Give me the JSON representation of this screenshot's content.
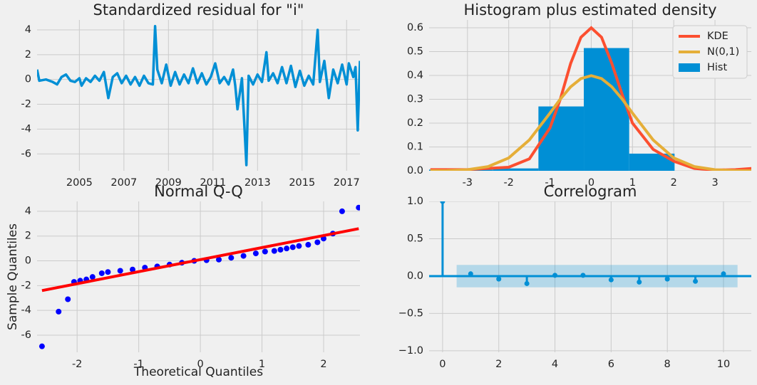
{
  "chart_data": [
    {
      "type": "line",
      "title": "Standardized residual for \"i\"",
      "x": [
        2003.1,
        2003.2,
        2003.5,
        2003.8,
        2004.0,
        2004.2,
        2004.4,
        2004.6,
        2004.8,
        2005.0,
        2005.1,
        2005.3,
        2005.5,
        2005.7,
        2005.9,
        2006.1,
        2006.3,
        2006.5,
        2006.7,
        2006.9,
        2007.1,
        2007.3,
        2007.5,
        2007.7,
        2007.9,
        2008.1,
        2008.3,
        2008.4,
        2008.5,
        2008.7,
        2008.9,
        2009.1,
        2009.3,
        2009.5,
        2009.7,
        2009.9,
        2010.1,
        2010.3,
        2010.5,
        2010.7,
        2010.9,
        2011.1,
        2011.3,
        2011.5,
        2011.7,
        2011.9,
        2012.0,
        2012.1,
        2012.3,
        2012.5,
        2012.6,
        2012.8,
        2013.0,
        2013.2,
        2013.4,
        2013.5,
        2013.7,
        2013.9,
        2014.1,
        2014.3,
        2014.5,
        2014.7,
        2014.9,
        2015.1,
        2015.3,
        2015.5,
        2015.7,
        2015.8,
        2016.0,
        2016.2,
        2016.4,
        2016.6,
        2016.8,
        2017.0,
        2017.1,
        2017.3,
        2017.4,
        2017.5,
        2017.6
      ],
      "series": [
        {
          "color": "#008fd5",
          "values": [
            0.8,
            -0.1,
            0,
            -0.2,
            -0.4,
            0.2,
            0.4,
            -0.1,
            -0.2,
            0.1,
            -0.5,
            0.1,
            -0.2,
            0.3,
            -0.1,
            0.6,
            -1.5,
            0.2,
            0.5,
            -0.3,
            0.3,
            -0.4,
            0.2,
            -0.5,
            0.3,
            -0.3,
            -0.4,
            4.3,
            0.8,
            -0.3,
            1.2,
            -0.5,
            0.6,
            -0.4,
            0.4,
            -0.3,
            0.9,
            -0.3,
            0.5,
            -0.4,
            0.2,
            1.3,
            -0.3,
            0.2,
            -0.4,
            0.8,
            -0.5,
            -2.4,
            0.1,
            -6.9,
            0.3,
            -0.4,
            0.4,
            -0.2,
            2.2,
            -0.1,
            0.5,
            -0.3,
            1.0,
            -0.3,
            1.1,
            -0.6,
            0.7,
            -0.5,
            0.3,
            -0.4,
            4.0,
            -0.2,
            1.5,
            -1.5,
            0.8,
            -0.3,
            1.2,
            -0.4,
            1.3,
            0.2,
            1.0,
            -4.1,
            1.5
          ]
        }
      ],
      "xlim": [
        2003.1,
        2017.6
      ],
      "xticks": [
        2005,
        2007,
        2009,
        2011,
        2013,
        2015,
        2017
      ],
      "ylim": [
        -7.36,
        4.8
      ],
      "yticks": [
        -6,
        -4,
        -2,
        0,
        2,
        4
      ],
      "grid": true
    },
    {
      "type": "histogram",
      "title": "Histogram plus estimated density",
      "x": [
        -3.9,
        -3.5,
        -3,
        -2.5,
        -2,
        -1.5,
        -1,
        -0.75,
        -0.5,
        -0.25,
        0,
        0.25,
        0.5,
        0.75,
        1,
        1.5,
        2,
        2.5,
        3,
        3.5,
        3.9
      ],
      "series": [
        {
          "name": "KDE",
          "color": "#fc4f30",
          "values": [
            0.005,
            0.005,
            0.005,
            0.01,
            0.015,
            0.05,
            0.18,
            0.3,
            0.45,
            0.56,
            0.6,
            0.56,
            0.45,
            0.32,
            0.2,
            0.09,
            0.04,
            0.01,
            0.003,
            0.005,
            0.01
          ]
        },
        {
          "name": "N(0,1)",
          "color": "#e5ae38",
          "values": [
            0.0002,
            0.0009,
            0.0044,
            0.0175,
            0.054,
            0.1295,
            0.242,
            0.301,
            0.352,
            0.387,
            0.399,
            0.387,
            0.352,
            0.301,
            0.242,
            0.1295,
            0.054,
            0.0175,
            0.0044,
            0.0009,
            0.0002
          ]
        }
      ],
      "hist": {
        "name": "Hist",
        "color": "#008fd5",
        "bins": [
          -6.78,
          -5.68,
          -4.58,
          -3.48,
          -2.38,
          -1.28,
          -0.18,
          0.92,
          2.02,
          3.12,
          4.22
        ],
        "values": [
          0.005,
          0,
          0.005,
          0.005,
          0.01,
          0.27,
          0.515,
          0.072,
          0,
          0.008
        ]
      },
      "legend": "upper right",
      "xlim": [
        -3.93,
        3.88
      ],
      "xticks": [
        -3,
        -2,
        -1,
        0,
        1,
        2,
        3
      ],
      "ylim": [
        0,
        0.633
      ],
      "yticks": [
        {
          "value": 0,
          "label": "0.0"
        },
        {
          "value": 0.1,
          "label": "0.1"
        },
        {
          "value": 0.2,
          "label": "0.2"
        },
        {
          "value": 0.3,
          "label": "0.3"
        },
        {
          "value": 0.4,
          "label": "0.4"
        },
        {
          "value": 0.5,
          "label": "0.5"
        },
        {
          "value": 0.6,
          "label": "0.6"
        }
      ],
      "grid": true
    },
    {
      "type": "scatter",
      "title": "Normal Q-Q",
      "xlabel": "Theoretical Quantiles",
      "ylabel": "Sample Quantiles",
      "x": [
        -2.57,
        -2.3,
        -2.15,
        -2.05,
        -1.95,
        -1.85,
        -1.75,
        -1.6,
        -1.5,
        -1.3,
        -1.1,
        -0.9,
        -0.7,
        -0.5,
        -0.3,
        -0.1,
        0.1,
        0.3,
        0.5,
        0.7,
        0.9,
        1.05,
        1.2,
        1.3,
        1.4,
        1.5,
        1.6,
        1.75,
        1.9,
        2.0,
        2.15,
        2.3,
        2.57
      ],
      "values": [
        -6.9,
        -4.1,
        -3.1,
        -1.7,
        -1.6,
        -1.5,
        -1.3,
        -1.0,
        -0.9,
        -0.8,
        -0.7,
        -0.55,
        -0.45,
        -0.3,
        -0.15,
        0,
        0.05,
        0.1,
        0.25,
        0.4,
        0.6,
        0.75,
        0.8,
        0.9,
        1.0,
        1.1,
        1.2,
        1.3,
        1.5,
        1.8,
        2.2,
        4.0,
        4.3
      ],
      "color": "#0000ff",
      "fit": {
        "color": "#ff0000",
        "x": [
          -2.57,
          2.57
        ],
        "values": [
          -2.4,
          2.6
        ]
      },
      "xlim": [
        -2.65,
        2.59
      ],
      "xticks": [
        -2,
        -1,
        0,
        1,
        2
      ],
      "ylim": [
        -7.38,
        4.8
      ],
      "yticks": [
        -6,
        -4,
        -2,
        0,
        2,
        4
      ],
      "grid": true
    },
    {
      "type": "stem",
      "title": "Correlogram",
      "x": [
        0,
        1,
        2,
        3,
        4,
        5,
        6,
        7,
        8,
        9,
        10
      ],
      "values": [
        1,
        0.03,
        -0.04,
        -0.1,
        0.01,
        0.01,
        -0.05,
        -0.08,
        -0.04,
        -0.07,
        0.03
      ],
      "color": "#008fd5",
      "band": {
        "x": [
          0.5,
          10.5
        ],
        "lower": [
          -0.15,
          -0.15
        ],
        "upper": [
          0.15,
          0.15
        ]
      },
      "xlim": [
        -0.48,
        10.99
      ],
      "xticks": [
        0,
        2,
        4,
        6,
        8,
        10
      ],
      "ylim": [
        -1.02,
        1.0
      ],
      "yticks": [
        {
          "value": -1,
          "label": "−1.0"
        },
        {
          "value": -0.5,
          "label": "−0.5"
        },
        {
          "value": 0,
          "label": "0.0"
        },
        {
          "value": 0.5,
          "label": "0.5"
        },
        {
          "value": 1,
          "label": "1.0"
        }
      ],
      "grid": true
    }
  ]
}
